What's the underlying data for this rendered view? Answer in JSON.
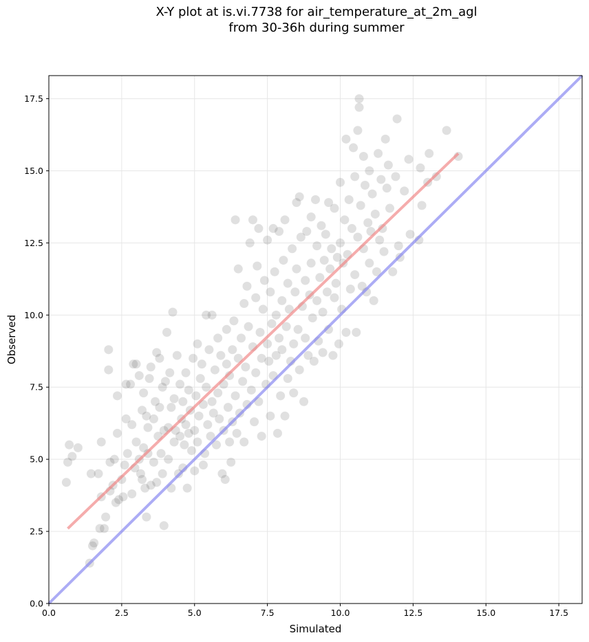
{
  "colors": {
    "points": "#555555",
    "regression_line": "#f08080",
    "identity_line": "#8080f0",
    "grid": "#e6e6e6"
  },
  "chart_data": {
    "type": "scatter",
    "title": "X-Y plot at is.vi.7738 for air_temperature_at_2m_agl\nfrom 30-36h during summer",
    "xlabel": "Simulated",
    "ylabel": "Observed",
    "xlim": [
      0,
      18.3
    ],
    "ylim": [
      0,
      18.3
    ],
    "x_ticks": [
      "0.0",
      "2.5",
      "5.0",
      "7.5",
      "10.0",
      "12.5",
      "15.0",
      "17.5"
    ],
    "y_ticks": [
      "0.0",
      "2.5",
      "5.0",
      "7.5",
      "10.0",
      "12.5",
      "15.0",
      "17.5"
    ],
    "grid": true,
    "legend": "none",
    "series": [
      {
        "values": [
          [
            0.6,
            4.2
          ],
          [
            0.65,
            4.9
          ],
          [
            0.7,
            5.5
          ],
          [
            0.8,
            5.1
          ],
          [
            1.0,
            5.4
          ],
          [
            1.4,
            1.4
          ],
          [
            1.45,
            4.5
          ],
          [
            1.5,
            2.0
          ],
          [
            1.55,
            2.1
          ],
          [
            1.7,
            4.5
          ],
          [
            1.75,
            2.6
          ],
          [
            1.8,
            3.7
          ],
          [
            1.8,
            5.6
          ],
          [
            1.9,
            2.6
          ],
          [
            1.95,
            3.0
          ],
          [
            2.05,
            8.8
          ],
          [
            2.05,
            8.1
          ],
          [
            2.1,
            4.9
          ],
          [
            2.1,
            3.9
          ],
          [
            2.2,
            4.1
          ],
          [
            2.25,
            5.0
          ],
          [
            2.3,
            3.5
          ],
          [
            2.35,
            5.9
          ],
          [
            2.35,
            7.2
          ],
          [
            2.4,
            3.6
          ],
          [
            2.5,
            4.3
          ],
          [
            2.55,
            3.7
          ],
          [
            2.6,
            4.8
          ],
          [
            2.65,
            6.4
          ],
          [
            2.65,
            7.6
          ],
          [
            2.7,
            5.2
          ],
          [
            2.8,
            7.6
          ],
          [
            2.85,
            3.8
          ],
          [
            2.85,
            6.2
          ],
          [
            2.9,
            8.3
          ],
          [
            2.95,
            4.7
          ],
          [
            3.0,
            8.3
          ],
          [
            3.0,
            5.6
          ],
          [
            3.1,
            7.9
          ],
          [
            3.1,
            5.0
          ],
          [
            3.15,
            4.5
          ],
          [
            3.2,
            4.3
          ],
          [
            3.2,
            6.7
          ],
          [
            3.25,
            5.4
          ],
          [
            3.25,
            7.3
          ],
          [
            3.3,
            4.0
          ],
          [
            3.35,
            6.5
          ],
          [
            3.35,
            3.0
          ],
          [
            3.4,
            6.1
          ],
          [
            3.4,
            5.2
          ],
          [
            3.45,
            7.8
          ],
          [
            3.5,
            4.1
          ],
          [
            3.5,
            8.2
          ],
          [
            3.6,
            4.9
          ],
          [
            3.6,
            6.4
          ],
          [
            3.65,
            7.0
          ],
          [
            3.7,
            4.2
          ],
          [
            3.7,
            8.7
          ],
          [
            3.75,
            5.8
          ],
          [
            3.8,
            6.8
          ],
          [
            3.8,
            8.5
          ],
          [
            3.85,
            5.2
          ],
          [
            3.9,
            7.5
          ],
          [
            3.9,
            4.5
          ],
          [
            3.95,
            6.0
          ],
          [
            3.95,
            2.7
          ],
          [
            4.0,
            7.7
          ],
          [
            4.05,
            9.4
          ],
          [
            4.1,
            6.1
          ],
          [
            4.1,
            5.0
          ],
          [
            4.15,
            8.0
          ],
          [
            4.2,
            6.8
          ],
          [
            4.2,
            4.0
          ],
          [
            4.25,
            10.1
          ],
          [
            4.3,
            5.6
          ],
          [
            4.3,
            7.1
          ],
          [
            4.35,
            6.0
          ],
          [
            4.4,
            8.6
          ],
          [
            4.45,
            4.5
          ],
          [
            4.5,
            7.6
          ],
          [
            4.5,
            5.8
          ],
          [
            4.55,
            6.4
          ],
          [
            4.6,
            4.7
          ],
          [
            4.6,
            7.0
          ],
          [
            4.65,
            5.5
          ],
          [
            4.7,
            8.0
          ],
          [
            4.7,
            6.2
          ],
          [
            4.75,
            4.0
          ],
          [
            4.8,
            5.9
          ],
          [
            4.8,
            7.4
          ],
          [
            4.85,
            6.7
          ],
          [
            4.9,
            5.3
          ],
          [
            4.95,
            8.5
          ],
          [
            5.0,
            6.0
          ],
          [
            5.0,
            4.6
          ],
          [
            5.05,
            7.2
          ],
          [
            5.1,
            9.0
          ],
          [
            5.1,
            5.6
          ],
          [
            5.15,
            6.5
          ],
          [
            5.2,
            7.8
          ],
          [
            5.25,
            8.3
          ],
          [
            5.3,
            4.8
          ],
          [
            5.3,
            6.9
          ],
          [
            5.35,
            5.2
          ],
          [
            5.4,
            10.0
          ],
          [
            5.4,
            7.5
          ],
          [
            5.45,
            6.2
          ],
          [
            5.5,
            8.8
          ],
          [
            5.55,
            5.8
          ],
          [
            5.6,
            7.0
          ],
          [
            5.6,
            10.0
          ],
          [
            5.65,
            6.6
          ],
          [
            5.7,
            8.1
          ],
          [
            5.75,
            5.5
          ],
          [
            5.8,
            7.3
          ],
          [
            5.8,
            9.2
          ],
          [
            5.85,
            6.4
          ],
          [
            5.9,
            8.6
          ],
          [
            5.95,
            4.5
          ],
          [
            6.0,
            7.6
          ],
          [
            6.0,
            6.0
          ],
          [
            6.05,
            4.3
          ],
          [
            6.1,
            8.3
          ],
          [
            6.1,
            9.5
          ],
          [
            6.15,
            6.8
          ],
          [
            6.2,
            5.6
          ],
          [
            6.2,
            7.9
          ],
          [
            6.25,
            4.9
          ],
          [
            6.3,
            8.8
          ],
          [
            6.3,
            6.3
          ],
          [
            6.35,
            9.8
          ],
          [
            6.4,
            7.2
          ],
          [
            6.4,
            13.3
          ],
          [
            6.45,
            5.9
          ],
          [
            6.5,
            8.5
          ],
          [
            6.5,
            11.6
          ],
          [
            6.55,
            6.6
          ],
          [
            6.6,
            9.2
          ],
          [
            6.65,
            7.7
          ],
          [
            6.7,
            5.6
          ],
          [
            6.7,
            10.4
          ],
          [
            6.75,
            8.2
          ],
          [
            6.8,
            6.9
          ],
          [
            6.8,
            11.0
          ],
          [
            6.85,
            9.6
          ],
          [
            6.9,
            12.5
          ],
          [
            6.95,
            7.4
          ],
          [
            7.0,
            8.9
          ],
          [
            7.0,
            13.3
          ],
          [
            7.05,
            6.3
          ],
          [
            7.1,
            10.6
          ],
          [
            7.1,
            8.0
          ],
          [
            7.15,
            11.7
          ],
          [
            7.2,
            13.0
          ],
          [
            7.2,
            7.0
          ],
          [
            7.25,
            9.4
          ],
          [
            7.3,
            8.5
          ],
          [
            7.3,
            5.8
          ],
          [
            7.35,
            10.2
          ],
          [
            7.4,
            11.2
          ],
          [
            7.45,
            7.6
          ],
          [
            7.5,
            9.0
          ],
          [
            7.5,
            12.6
          ],
          [
            7.55,
            8.4
          ],
          [
            7.6,
            10.8
          ],
          [
            7.6,
            6.5
          ],
          [
            7.65,
            9.7
          ],
          [
            7.7,
            13.0
          ],
          [
            7.7,
            7.9
          ],
          [
            7.75,
            11.5
          ],
          [
            7.8,
            8.6
          ],
          [
            7.8,
            10.0
          ],
          [
            7.85,
            5.9
          ],
          [
            7.9,
            12.9
          ],
          [
            7.9,
            9.2
          ],
          [
            7.95,
            7.2
          ],
          [
            8.0,
            10.5
          ],
          [
            8.0,
            8.8
          ],
          [
            8.05,
            11.9
          ],
          [
            8.1,
            6.5
          ],
          [
            8.1,
            13.3
          ],
          [
            8.15,
            9.6
          ],
          [
            8.2,
            7.8
          ],
          [
            8.2,
            11.1
          ],
          [
            8.25,
            10.2
          ],
          [
            8.3,
            8.4
          ],
          [
            8.35,
            12.3
          ],
          [
            8.4,
            9.0
          ],
          [
            8.4,
            7.3
          ],
          [
            8.45,
            10.8
          ],
          [
            8.5,
            11.6
          ],
          [
            8.5,
            13.9
          ],
          [
            8.55,
            9.5
          ],
          [
            8.6,
            14.1
          ],
          [
            8.6,
            8.1
          ],
          [
            8.65,
            12.7
          ],
          [
            8.7,
            10.3
          ],
          [
            8.75,
            7.0
          ],
          [
            8.8,
            11.2
          ],
          [
            8.8,
            9.2
          ],
          [
            8.85,
            12.9
          ],
          [
            8.9,
            8.6
          ],
          [
            8.95,
            10.7
          ],
          [
            9.0,
            13.4
          ],
          [
            9.0,
            11.8
          ],
          [
            9.05,
            9.9
          ],
          [
            9.1,
            8.4
          ],
          [
            9.15,
            14.0
          ],
          [
            9.2,
            10.5
          ],
          [
            9.2,
            12.4
          ],
          [
            9.25,
            9.1
          ],
          [
            9.3,
            11.3
          ],
          [
            9.35,
            13.1
          ],
          [
            9.4,
            10.1
          ],
          [
            9.4,
            8.7
          ],
          [
            9.45,
            11.9
          ],
          [
            9.5,
            12.8
          ],
          [
            9.55,
            10.8
          ],
          [
            9.6,
            13.9
          ],
          [
            9.6,
            9.5
          ],
          [
            9.65,
            11.6
          ],
          [
            9.7,
            12.3
          ],
          [
            9.75,
            8.6
          ],
          [
            9.8,
            10.6
          ],
          [
            9.8,
            13.7
          ],
          [
            9.85,
            11.1
          ],
          [
            9.9,
            12.0
          ],
          [
            9.95,
            9.0
          ],
          [
            10.0,
            14.6
          ],
          [
            10.0,
            12.5
          ],
          [
            10.05,
            10.2
          ],
          [
            10.1,
            11.8
          ],
          [
            10.15,
            13.3
          ],
          [
            10.2,
            9.4
          ],
          [
            10.2,
            16.1
          ],
          [
            10.25,
            12.1
          ],
          [
            10.3,
            14.0
          ],
          [
            10.35,
            10.9
          ],
          [
            10.4,
            13.0
          ],
          [
            10.45,
            15.8
          ],
          [
            10.5,
            11.4
          ],
          [
            10.5,
            14.8
          ],
          [
            10.55,
            9.4
          ],
          [
            10.6,
            12.7
          ],
          [
            10.6,
            16.4
          ],
          [
            10.65,
            17.2
          ],
          [
            10.65,
            17.5
          ],
          [
            10.7,
            13.8
          ],
          [
            10.75,
            11.0
          ],
          [
            10.8,
            15.5
          ],
          [
            10.8,
            12.3
          ],
          [
            10.85,
            14.5
          ],
          [
            10.9,
            10.8
          ],
          [
            10.95,
            13.2
          ],
          [
            11.0,
            15.0
          ],
          [
            11.0,
            11.8
          ],
          [
            11.05,
            12.9
          ],
          [
            11.1,
            14.2
          ],
          [
            11.15,
            10.5
          ],
          [
            11.2,
            13.5
          ],
          [
            11.25,
            11.5
          ],
          [
            11.3,
            15.6
          ],
          [
            11.35,
            12.6
          ],
          [
            11.4,
            14.7
          ],
          [
            11.45,
            13.0
          ],
          [
            11.5,
            12.2
          ],
          [
            11.55,
            16.1
          ],
          [
            11.6,
            14.4
          ],
          [
            11.65,
            15.2
          ],
          [
            11.7,
            13.7
          ],
          [
            11.8,
            11.5
          ],
          [
            11.9,
            14.8
          ],
          [
            11.95,
            16.8
          ],
          [
            12.0,
            12.4
          ],
          [
            12.05,
            12.0
          ],
          [
            12.2,
            14.3
          ],
          [
            12.35,
            15.4
          ],
          [
            12.4,
            12.8
          ],
          [
            12.7,
            12.6
          ],
          [
            12.75,
            15.1
          ],
          [
            12.8,
            13.8
          ],
          [
            13.0,
            14.6
          ],
          [
            13.05,
            15.6
          ],
          [
            13.3,
            14.8
          ],
          [
            13.65,
            16.4
          ],
          [
            14.05,
            15.5
          ]
        ]
      }
    ],
    "regression_line": [
      [
        0.65,
        2.6
      ],
      [
        14.05,
        15.6
      ]
    ],
    "identity_line": [
      [
        0,
        0
      ],
      [
        18.3,
        18.3
      ]
    ]
  }
}
